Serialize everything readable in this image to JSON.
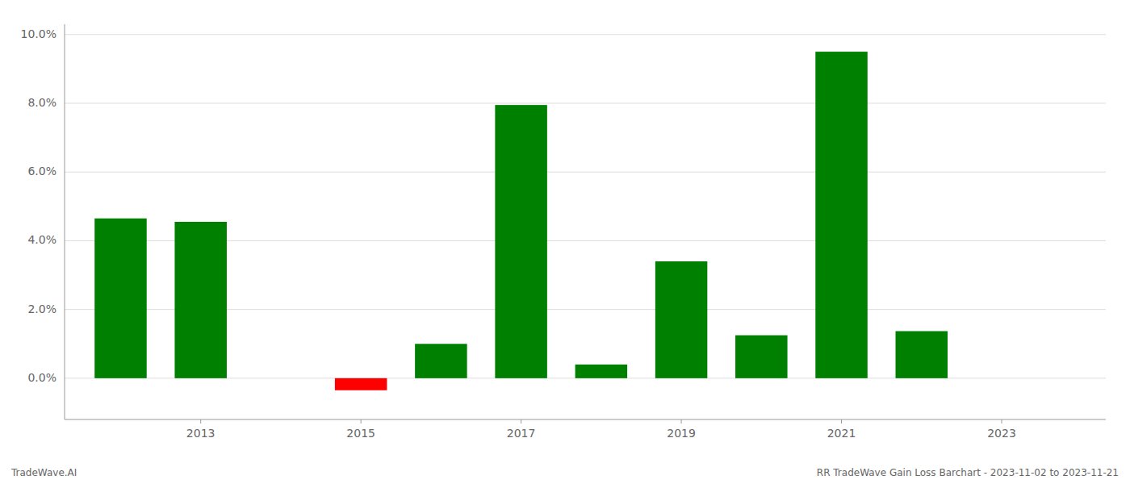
{
  "chart_data": {
    "type": "bar",
    "x": [
      2012,
      2013,
      2015,
      2016,
      2017,
      2018,
      2019,
      2020,
      2021,
      2022
    ],
    "values": [
      0.0465,
      0.0455,
      -0.0035,
      0.01,
      0.0795,
      0.004,
      0.034,
      0.0125,
      0.095,
      0.0137
    ],
    "colors": [
      "#008000",
      "#008000",
      "#ff0000",
      "#008000",
      "#008000",
      "#008000",
      "#008000",
      "#008000",
      "#008000",
      "#008000"
    ],
    "xlim": [
      2011.3,
      2024.3
    ],
    "xticks": [
      2013,
      2015,
      2017,
      2019,
      2021,
      2023
    ],
    "ylim": [
      -0.012,
      0.103
    ],
    "yticks": [
      {
        "value": 0.0,
        "label": "0.0%"
      },
      {
        "value": 0.02,
        "label": "2.0%"
      },
      {
        "value": 0.04,
        "label": "4.0%"
      },
      {
        "value": 0.06,
        "label": "6.0%"
      },
      {
        "value": 0.08,
        "label": "8.0%"
      },
      {
        "value": 0.1,
        "label": "10.0%"
      }
    ],
    "grid": true,
    "annotations": [
      "TradeWave.AI",
      "RR TradeWave Gain Loss Barchart - 2023-11-02 to 2023-11-21"
    ]
  }
}
